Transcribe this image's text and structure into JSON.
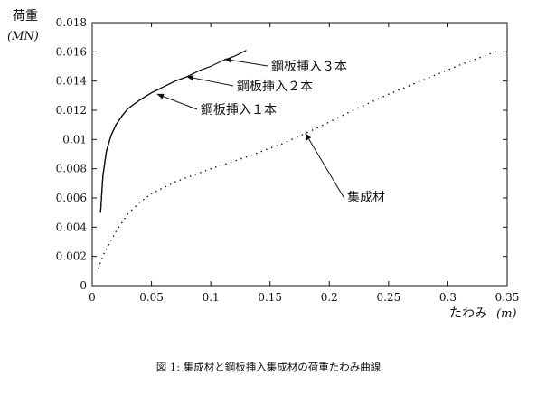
{
  "caption": "図 1: 集成材と鋼板挿入集成材の荷重たわみ曲線",
  "chart_data": {
    "type": "line",
    "ylabel": "荷重",
    "ylabel_unit": "(MN)",
    "xlabel": "たわみ",
    "xlabel_unit": "(m)",
    "xlim": [
      0,
      0.35
    ],
    "ylim": [
      0,
      0.018
    ],
    "xticks": [
      0,
      0.05,
      0.1,
      0.15,
      0.2,
      0.25,
      0.3,
      0.35
    ],
    "xtick_labels": [
      "0",
      "0.05",
      "0.1",
      "0.15",
      "0.2",
      "0.25",
      "0.3",
      "0.35"
    ],
    "yticks": [
      0,
      0.002,
      0.004,
      0.006,
      0.008,
      0.01,
      0.012,
      0.014,
      0.016,
      0.018
    ],
    "ytick_labels": [
      "0",
      "0.002",
      "0.004",
      "0.006",
      "0.008",
      "0.01",
      "0.012",
      "0.014",
      "0.016",
      "0.018"
    ],
    "grid": false,
    "series": [
      {
        "name": "鋼板挿入１本",
        "style": "solid",
        "x": [
          0.007,
          0.009,
          0.012,
          0.016,
          0.02,
          0.025,
          0.03,
          0.04,
          0.05,
          0.058
        ],
        "y": [
          0.005,
          0.0075,
          0.0092,
          0.0103,
          0.011,
          0.0116,
          0.0121,
          0.0127,
          0.0132,
          0.0135
        ]
      },
      {
        "name": "鋼板挿入２本",
        "style": "solid",
        "x": [
          0.007,
          0.009,
          0.012,
          0.016,
          0.02,
          0.025,
          0.03,
          0.04,
          0.05,
          0.06,
          0.07,
          0.08,
          0.085
        ],
        "y": [
          0.005,
          0.0075,
          0.0092,
          0.0103,
          0.011,
          0.0116,
          0.0121,
          0.0127,
          0.0132,
          0.0136,
          0.014,
          0.0143,
          0.0145
        ]
      },
      {
        "name": "鋼板挿入３本",
        "style": "solid",
        "x": [
          0.007,
          0.009,
          0.012,
          0.016,
          0.02,
          0.025,
          0.03,
          0.04,
          0.05,
          0.06,
          0.07,
          0.08,
          0.09,
          0.1,
          0.11,
          0.12,
          0.13
        ],
        "y": [
          0.005,
          0.0075,
          0.0092,
          0.0103,
          0.011,
          0.0116,
          0.0121,
          0.0127,
          0.0132,
          0.0136,
          0.014,
          0.0143,
          0.0147,
          0.015,
          0.0154,
          0.0157,
          0.0161
        ]
      },
      {
        "name": "集成材",
        "style": "dotted",
        "x": [
          0.005,
          0.01,
          0.02,
          0.03,
          0.04,
          0.05,
          0.07,
          0.1,
          0.13,
          0.16,
          0.19,
          0.22,
          0.25,
          0.28,
          0.31,
          0.34
        ],
        "y": [
          0.0012,
          0.0022,
          0.0037,
          0.0049,
          0.0057,
          0.0063,
          0.0071,
          0.008,
          0.0088,
          0.0097,
          0.0108,
          0.012,
          0.0131,
          0.0141,
          0.0151,
          0.016
        ]
      }
    ],
    "annotations": [
      {
        "text": "鋼板挿入３本",
        "target": [
          0.112,
          0.0155
        ],
        "anchor": "right"
      },
      {
        "text": "鋼板挿入２本",
        "target": [
          0.08,
          0.0143
        ],
        "anchor": "right"
      },
      {
        "text": "鋼板挿入１本",
        "target": [
          0.055,
          0.0131
        ],
        "anchor": "right"
      },
      {
        "text": "集成材",
        "target": [
          0.18,
          0.0104
        ],
        "anchor": "right"
      }
    ]
  }
}
